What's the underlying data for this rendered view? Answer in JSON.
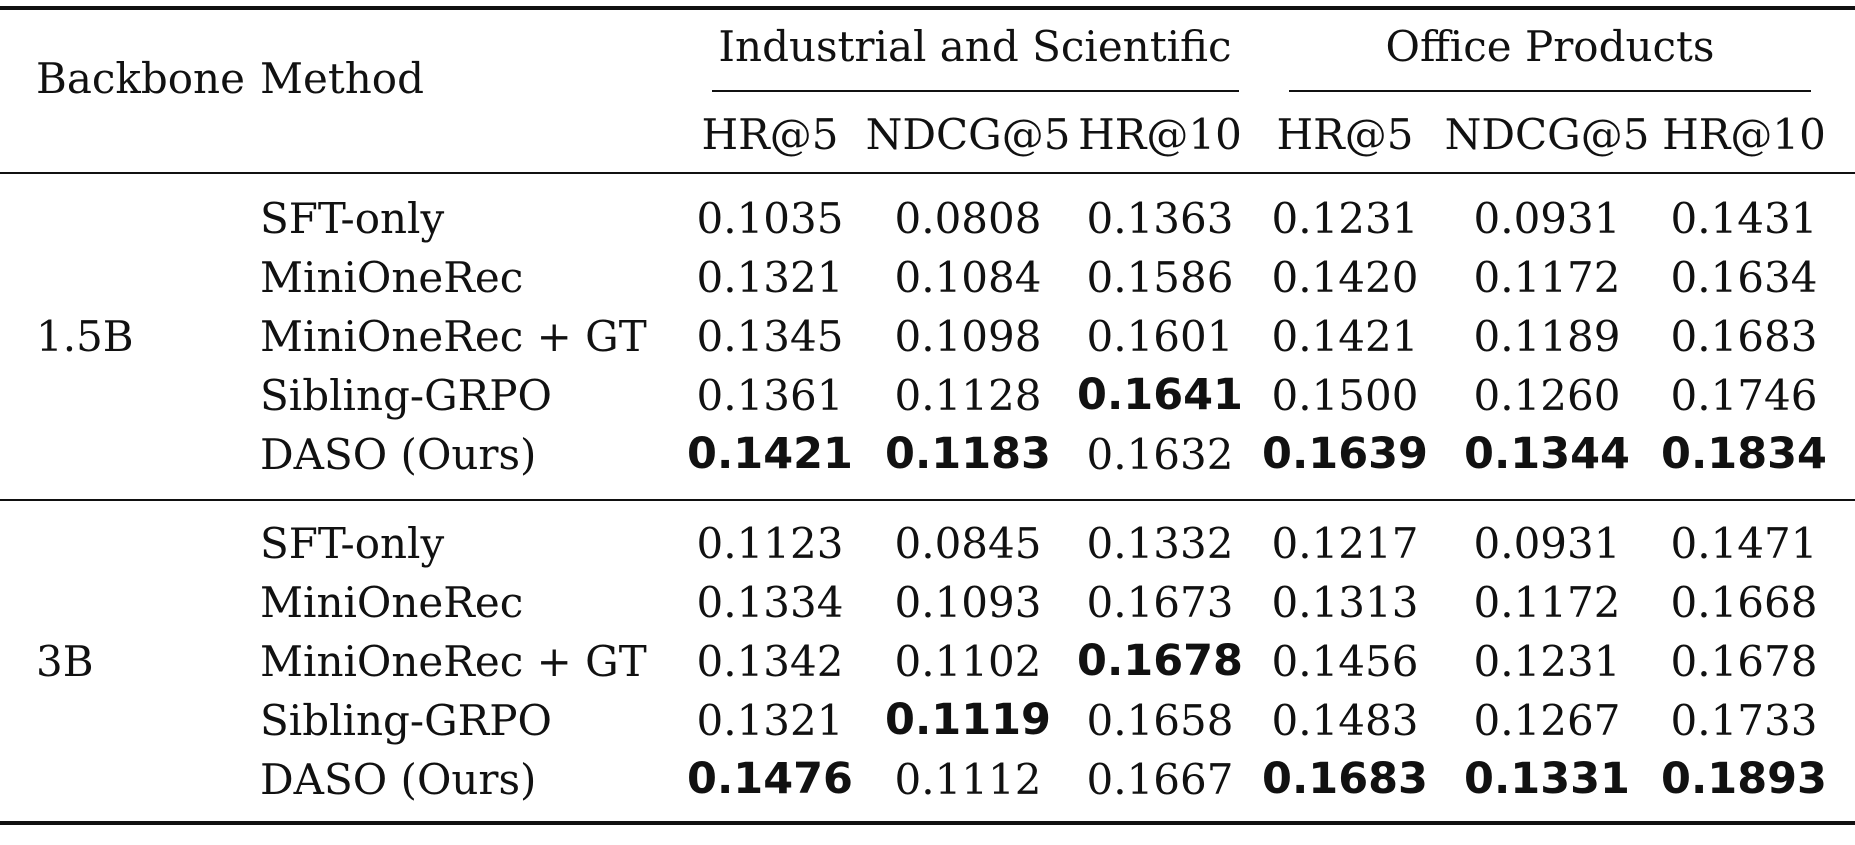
{
  "table": {
    "headers": {
      "backbone": "Backbone",
      "method": "Method",
      "groups": [
        "Industrial and Scientific",
        "Office Products"
      ],
      "metrics": [
        "HR@5",
        "NDCG@5",
        "HR@10",
        "HR@5",
        "NDCG@5",
        "HR@10"
      ]
    },
    "blocks": [
      {
        "backbone": "1.5B",
        "rows": [
          {
            "method": "SFT-only",
            "values": [
              "0.1035",
              "0.0808",
              "0.1363",
              "0.1231",
              "0.0931",
              "0.1431"
            ],
            "bold": [
              false,
              false,
              false,
              false,
              false,
              false
            ]
          },
          {
            "method": "MiniOneRec",
            "values": [
              "0.1321",
              "0.1084",
              "0.1586",
              "0.1420",
              "0.1172",
              "0.1634"
            ],
            "bold": [
              false,
              false,
              false,
              false,
              false,
              false
            ]
          },
          {
            "method": "MiniOneRec + GT",
            "values": [
              "0.1345",
              "0.1098",
              "0.1601",
              "0.1421",
              "0.1189",
              "0.1683"
            ],
            "bold": [
              false,
              false,
              false,
              false,
              false,
              false
            ]
          },
          {
            "method": "Sibling-GRPO",
            "values": [
              "0.1361",
              "0.1128",
              "0.1641",
              "0.1500",
              "0.1260",
              "0.1746"
            ],
            "bold": [
              false,
              false,
              true,
              false,
              false,
              false
            ]
          },
          {
            "method": "DASO (Ours)",
            "values": [
              "0.1421",
              "0.1183",
              "0.1632",
              "0.1639",
              "0.1344",
              "0.1834"
            ],
            "bold": [
              true,
              true,
              false,
              true,
              true,
              true
            ]
          }
        ]
      },
      {
        "backbone": "3B",
        "rows": [
          {
            "method": "SFT-only",
            "values": [
              "0.1123",
              "0.0845",
              "0.1332",
              "0.1217",
              "0.0931",
              "0.1471"
            ],
            "bold": [
              false,
              false,
              false,
              false,
              false,
              false
            ]
          },
          {
            "method": "MiniOneRec",
            "values": [
              "0.1334",
              "0.1093",
              "0.1673",
              "0.1313",
              "0.1172",
              "0.1668"
            ],
            "bold": [
              false,
              false,
              false,
              false,
              false,
              false
            ]
          },
          {
            "method": "MiniOneRec + GT",
            "values": [
              "0.1342",
              "0.1102",
              "0.1678",
              "0.1456",
              "0.1231",
              "0.1678"
            ],
            "bold": [
              false,
              false,
              true,
              false,
              false,
              false
            ]
          },
          {
            "method": "Sibling-GRPO",
            "values": [
              "0.1321",
              "0.1119",
              "0.1658",
              "0.1483",
              "0.1267",
              "0.1733"
            ],
            "bold": [
              false,
              true,
              false,
              false,
              false,
              false
            ]
          },
          {
            "method": "DASO (Ours)",
            "values": [
              "0.1476",
              "0.1112",
              "0.1667",
              "0.1683",
              "0.1331",
              "0.1893"
            ],
            "bold": [
              true,
              false,
              false,
              true,
              true,
              true
            ]
          }
        ]
      }
    ]
  }
}
